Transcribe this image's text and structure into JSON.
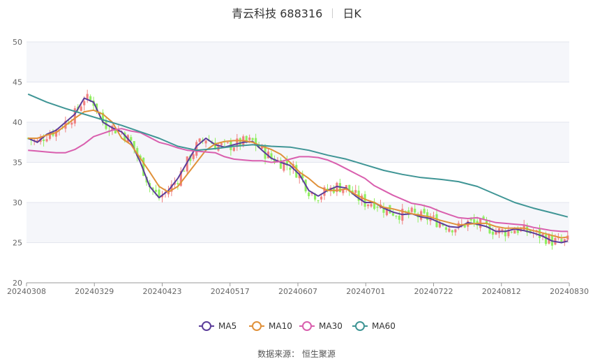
{
  "title": {
    "name": "青云科技 688316",
    "period": "日K"
  },
  "source": "数据来源： 恒生聚源",
  "chart_data": {
    "type": "candlestick",
    "ylim": [
      20,
      50
    ],
    "yticks": [
      20,
      25,
      30,
      35,
      40,
      45,
      50
    ],
    "xticks": [
      "20240308",
      "20240329",
      "20240423",
      "20240517",
      "20240607",
      "20240701",
      "20240722",
      "20240812",
      "20240830"
    ],
    "colors": {
      "up": "#f08080",
      "down": "#90ee60",
      "ma5": "#5b3d9a",
      "ma10": "#e0913a",
      "ma30": "#d95fae",
      "ma60": "#3f9595"
    },
    "legend": [
      "MA5",
      "MA10",
      "MA30",
      "MA60"
    ],
    "grid": true,
    "ma_series": {
      "MA5": [
        [
          0,
          38.0
        ],
        [
          3,
          37.5
        ],
        [
          6,
          38.5
        ],
        [
          9,
          39.0
        ],
        [
          12,
          40.0
        ],
        [
          15,
          41.0
        ],
        [
          18,
          43.0
        ],
        [
          21,
          42.5
        ],
        [
          24,
          40.0
        ],
        [
          27,
          39.3
        ],
        [
          30,
          38.8
        ],
        [
          33,
          37.5
        ],
        [
          36,
          35.0
        ],
        [
          39,
          32.0
        ],
        [
          42,
          30.6
        ],
        [
          45,
          31.5
        ],
        [
          48,
          33.0
        ],
        [
          51,
          35.0
        ],
        [
          54,
          37.0
        ],
        [
          57,
          38.0
        ],
        [
          60,
          37.2
        ],
        [
          63,
          36.9
        ],
        [
          66,
          37.2
        ],
        [
          69,
          37.5
        ],
        [
          72,
          37.6
        ],
        [
          75,
          36.5
        ],
        [
          78,
          35.5
        ],
        [
          81,
          35.0
        ],
        [
          84,
          34.6
        ],
        [
          87,
          33.5
        ],
        [
          90,
          31.5
        ],
        [
          93,
          30.8
        ],
        [
          96,
          31.5
        ],
        [
          99,
          32.0
        ],
        [
          102,
          31.8
        ],
        [
          105,
          30.8
        ],
        [
          108,
          30.0
        ],
        [
          111,
          30.0
        ],
        [
          114,
          29.3
        ],
        [
          117,
          28.8
        ],
        [
          120,
          28.5
        ],
        [
          123,
          28.6
        ],
        [
          126,
          28.2
        ],
        [
          129,
          28.0
        ],
        [
          132,
          27.5
        ],
        [
          135,
          27.0
        ],
        [
          138,
          26.9
        ],
        [
          141,
          27.5
        ],
        [
          144,
          27.3
        ],
        [
          147,
          27.0
        ],
        [
          150,
          26.4
        ],
        [
          153,
          26.4
        ],
        [
          156,
          26.7
        ],
        [
          159,
          26.5
        ],
        [
          162,
          26.2
        ],
        [
          165,
          25.8
        ],
        [
          168,
          25.2
        ],
        [
          171,
          25.0
        ],
        [
          173,
          25.2
        ]
      ],
      "MA10": [
        [
          0,
          38.0
        ],
        [
          3,
          38.0
        ],
        [
          6,
          38.4
        ],
        [
          9,
          38.7
        ],
        [
          12,
          39.6
        ],
        [
          15,
          40.5
        ],
        [
          18,
          41.3
        ],
        [
          21,
          41.5
        ],
        [
          24,
          41.0
        ],
        [
          27,
          40.0
        ],
        [
          30,
          38.0
        ],
        [
          33,
          37.2
        ],
        [
          36,
          35.5
        ],
        [
          39,
          33.8
        ],
        [
          42,
          32.0
        ],
        [
          45,
          31.3
        ],
        [
          48,
          32.0
        ],
        [
          51,
          33.5
        ],
        [
          54,
          35.0
        ],
        [
          57,
          36.5
        ],
        [
          60,
          37.3
        ],
        [
          63,
          37.6
        ],
        [
          66,
          37.7
        ],
        [
          69,
          37.7
        ],
        [
          72,
          37.5
        ],
        [
          75,
          37.0
        ],
        [
          78,
          36.6
        ],
        [
          81,
          36.0
        ],
        [
          84,
          35.0
        ],
        [
          87,
          33.8
        ],
        [
          90,
          33.0
        ],
        [
          93,
          32.0
        ],
        [
          96,
          31.5
        ],
        [
          99,
          31.5
        ],
        [
          102,
          31.7
        ],
        [
          105,
          31.0
        ],
        [
          108,
          30.4
        ],
        [
          111,
          30.0
        ],
        [
          114,
          29.4
        ],
        [
          117,
          29.2
        ],
        [
          120,
          28.9
        ],
        [
          123,
          28.6
        ],
        [
          126,
          28.4
        ],
        [
          129,
          28.2
        ],
        [
          132,
          27.8
        ],
        [
          135,
          27.5
        ],
        [
          138,
          27.2
        ],
        [
          141,
          27.3
        ],
        [
          144,
          27.4
        ],
        [
          147,
          27.4
        ],
        [
          150,
          27.0
        ],
        [
          153,
          26.8
        ],
        [
          156,
          26.8
        ],
        [
          159,
          26.8
        ],
        [
          162,
          26.5
        ],
        [
          165,
          26.2
        ],
        [
          168,
          25.9
        ],
        [
          171,
          25.6
        ],
        [
          173,
          25.7
        ]
      ],
      "MA30": [
        [
          0,
          36.5
        ],
        [
          3,
          36.4
        ],
        [
          6,
          36.3
        ],
        [
          9,
          36.2
        ],
        [
          12,
          36.2
        ],
        [
          15,
          36.6
        ],
        [
          18,
          37.3
        ],
        [
          21,
          38.2
        ],
        [
          24,
          38.6
        ],
        [
          27,
          39.0
        ],
        [
          30,
          39.2
        ],
        [
          33,
          38.9
        ],
        [
          36,
          38.7
        ],
        [
          39,
          38.1
        ],
        [
          42,
          37.5
        ],
        [
          45,
          37.2
        ],
        [
          48,
          36.8
        ],
        [
          51,
          36.5
        ],
        [
          54,
          36.4
        ],
        [
          57,
          36.3
        ],
        [
          60,
          36.2
        ],
        [
          63,
          35.7
        ],
        [
          66,
          35.4
        ],
        [
          69,
          35.3
        ],
        [
          72,
          35.2
        ],
        [
          75,
          35.2
        ],
        [
          78,
          35.0
        ],
        [
          81,
          35.1
        ],
        [
          84,
          35.4
        ],
        [
          87,
          35.7
        ],
        [
          90,
          35.7
        ],
        [
          93,
          35.6
        ],
        [
          96,
          35.3
        ],
        [
          99,
          34.8
        ],
        [
          102,
          34.2
        ],
        [
          105,
          33.6
        ],
        [
          108,
          33.0
        ],
        [
          111,
          32.1
        ],
        [
          114,
          31.5
        ],
        [
          117,
          30.9
        ],
        [
          120,
          30.4
        ],
        [
          123,
          29.9
        ],
        [
          126,
          29.7
        ],
        [
          129,
          29.4
        ],
        [
          132,
          28.9
        ],
        [
          135,
          28.5
        ],
        [
          138,
          28.1
        ],
        [
          141,
          28.0
        ],
        [
          144,
          28.1
        ],
        [
          147,
          27.8
        ],
        [
          150,
          27.5
        ],
        [
          153,
          27.4
        ],
        [
          156,
          27.3
        ],
        [
          159,
          27.2
        ],
        [
          162,
          26.9
        ],
        [
          165,
          26.7
        ],
        [
          168,
          26.5
        ],
        [
          171,
          26.4
        ],
        [
          173,
          26.4
        ]
      ],
      "MA60": [
        [
          0,
          43.5
        ],
        [
          6,
          42.5
        ],
        [
          12,
          41.7
        ],
        [
          18,
          41.0
        ],
        [
          24,
          40.3
        ],
        [
          30,
          39.6
        ],
        [
          36,
          38.8
        ],
        [
          42,
          38.0
        ],
        [
          48,
          37.0
        ],
        [
          54,
          36.5
        ],
        [
          60,
          36.7
        ],
        [
          66,
          37.0
        ],
        [
          72,
          37.2
        ],
        [
          78,
          37.0
        ],
        [
          84,
          36.9
        ],
        [
          90,
          36.5
        ],
        [
          96,
          35.9
        ],
        [
          102,
          35.4
        ],
        [
          108,
          34.7
        ],
        [
          114,
          34.0
        ],
        [
          120,
          33.5
        ],
        [
          126,
          33.1
        ],
        [
          132,
          32.9
        ],
        [
          138,
          32.6
        ],
        [
          144,
          32.0
        ],
        [
          150,
          31.0
        ],
        [
          156,
          30.0
        ],
        [
          162,
          29.3
        ],
        [
          168,
          28.7
        ],
        [
          173,
          28.2
        ]
      ]
    }
  }
}
